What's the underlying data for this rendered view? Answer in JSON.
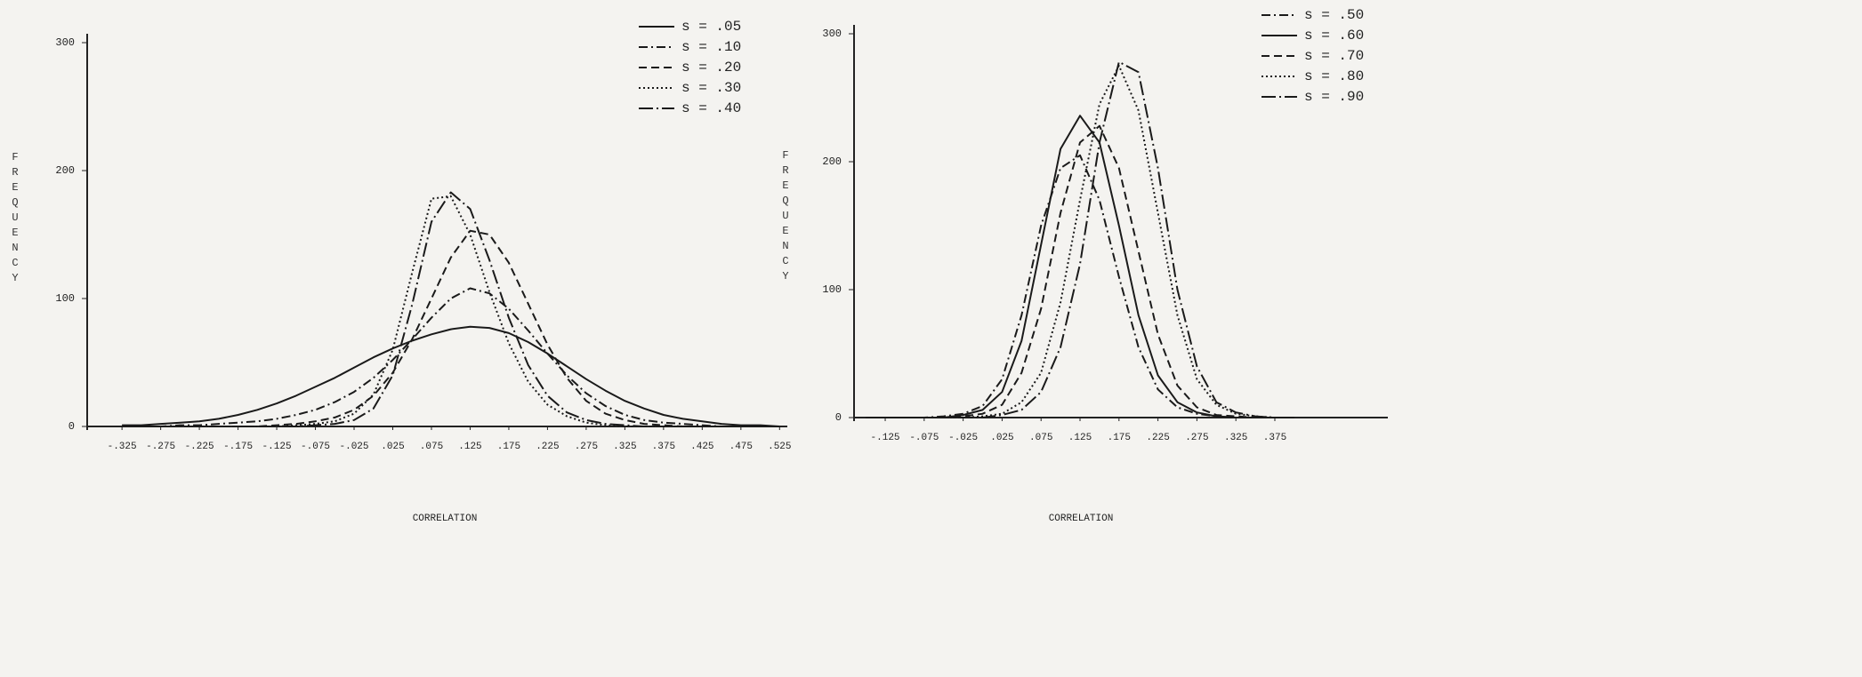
{
  "chart_data": [
    {
      "type": "line",
      "xlabel": "CORRELATION",
      "ylabel": "FREQUENCY",
      "grid": false,
      "legend": "top-right",
      "xlim": [
        -0.37,
        0.535
      ],
      "ylim": [
        0,
        300
      ],
      "xticks": [
        {
          "value": -0.325,
          "label": "-.325"
        },
        {
          "value": -0.275,
          "label": "-.275"
        },
        {
          "value": -0.225,
          "label": "-.225"
        },
        {
          "value": -0.175,
          "label": "-.175"
        },
        {
          "value": -0.125,
          "label": "-.125"
        },
        {
          "value": -0.075,
          "label": "-.075"
        },
        {
          "value": -0.025,
          "label": "-.025"
        },
        {
          "value": 0.025,
          "label": ".025"
        },
        {
          "value": 0.075,
          "label": ".075"
        },
        {
          "value": 0.125,
          "label": ".125"
        },
        {
          "value": 0.175,
          "label": ".175"
        },
        {
          "value": 0.225,
          "label": ".225"
        },
        {
          "value": 0.275,
          "label": ".275"
        },
        {
          "value": 0.325,
          "label": ".325"
        },
        {
          "value": 0.375,
          "label": ".375"
        },
        {
          "value": 0.425,
          "label": ".425"
        },
        {
          "value": 0.475,
          "label": ".475"
        },
        {
          "value": 0.525,
          "label": ".525"
        }
      ],
      "yticks": [
        0,
        100,
        200,
        300
      ],
      "x": [
        -0.325,
        -0.3,
        -0.275,
        -0.25,
        -0.225,
        -0.2,
        -0.175,
        -0.15,
        -0.125,
        -0.1,
        -0.075,
        -0.05,
        -0.025,
        0,
        0.025,
        0.05,
        0.075,
        0.1,
        0.125,
        0.15,
        0.175,
        0.2,
        0.225,
        0.25,
        0.275,
        0.3,
        0.325,
        0.35,
        0.375,
        0.4,
        0.425,
        0.45,
        0.475,
        0.5,
        0.525
      ],
      "series": [
        {
          "name": "s = .05",
          "color": "#1a1a1a",
          "line_style": "solid",
          "values": [
            1,
            1,
            2,
            3,
            4,
            6,
            9,
            13,
            18,
            24,
            31,
            38,
            46,
            54,
            61,
            67,
            72,
            76,
            78,
            77,
            73,
            66,
            57,
            47,
            37,
            28,
            20,
            14,
            9,
            6,
            4,
            2,
            1,
            1,
            0
          ]
        },
        {
          "name": "s = .10",
          "color": "#1a1a1a",
          "line_style": "dash-dot",
          "values": [
            0,
            0,
            0,
            1,
            1,
            2,
            3,
            4,
            6,
            9,
            13,
            19,
            27,
            38,
            52,
            68,
            85,
            100,
            108,
            104,
            92,
            75,
            57,
            40,
            26,
            16,
            9,
            5,
            3,
            2,
            1,
            0,
            0,
            0,
            0
          ]
        },
        {
          "name": "s = .20",
          "color": "#1a1a1a",
          "line_style": "dashed",
          "values": [
            0,
            0,
            0,
            0,
            0,
            0,
            0,
            0,
            1,
            2,
            4,
            7,
            13,
            24,
            42,
            68,
            100,
            132,
            153,
            150,
            128,
            96,
            64,
            38,
            20,
            10,
            5,
            2,
            1,
            0,
            0,
            0,
            0,
            0,
            0
          ]
        },
        {
          "name": "s = .30",
          "color": "#1a1a1a",
          "line_style": "dotted",
          "values": [
            0,
            0,
            0,
            0,
            0,
            0,
            0,
            0,
            0,
            1,
            2,
            4,
            10,
            25,
            60,
            120,
            178,
            180,
            150,
            105,
            65,
            35,
            17,
            8,
            3,
            1,
            0,
            0,
            0,
            0,
            0,
            0,
            0,
            0,
            0
          ]
        },
        {
          "name": "s = .40",
          "color": "#1a1a1a",
          "line_style": "long-dash-dot",
          "values": [
            0,
            0,
            0,
            0,
            0,
            0,
            0,
            0,
            0,
            0,
            1,
            2,
            5,
            14,
            40,
            95,
            160,
            183,
            170,
            130,
            85,
            48,
            24,
            11,
            5,
            2,
            1,
            0,
            0,
            0,
            0,
            0,
            0,
            0,
            0
          ]
        }
      ]
    },
    {
      "type": "line",
      "xlabel": "CORRELATION",
      "ylabel": "FREQUENCY",
      "grid": false,
      "legend": "top-right",
      "xlim": [
        -0.165,
        0.52
      ],
      "ylim": [
        0,
        300
      ],
      "xticks": [
        {
          "value": -0.125,
          "label": "-.125"
        },
        {
          "value": -0.075,
          "label": "-.075"
        },
        {
          "value": -0.025,
          "label": "-.025"
        },
        {
          "value": 0.025,
          "label": ".025"
        },
        {
          "value": 0.075,
          "label": ".075"
        },
        {
          "value": 0.125,
          "label": ".125"
        },
        {
          "value": 0.175,
          "label": ".175"
        },
        {
          "value": 0.225,
          "label": ".225"
        },
        {
          "value": 0.275,
          "label": ".275"
        },
        {
          "value": 0.325,
          "label": ".325"
        },
        {
          "value": 0.375,
          "label": ".375"
        }
      ],
      "yticks": [
        0,
        100,
        200,
        300
      ],
      "x": [
        -0.15,
        -0.125,
        -0.1,
        -0.075,
        -0.05,
        -0.025,
        0,
        0.025,
        0.05,
        0.075,
        0.1,
        0.125,
        0.15,
        0.175,
        0.2,
        0.225,
        0.25,
        0.275,
        0.3,
        0.325,
        0.35,
        0.375,
        0.4
      ],
      "series": [
        {
          "name": "s = .50",
          "color": "#1a1a1a",
          "line_style": "dash-dot",
          "values": [
            0,
            0,
            0,
            0,
            1,
            3,
            9,
            30,
            80,
            150,
            195,
            205,
            170,
            110,
            55,
            22,
            8,
            3,
            1,
            0,
            0,
            0,
            0
          ]
        },
        {
          "name": "s = .60",
          "color": "#1a1a1a",
          "line_style": "solid",
          "values": [
            0,
            0,
            0,
            0,
            0,
            2,
            6,
            20,
            60,
            135,
            210,
            236,
            215,
            150,
            80,
            33,
            12,
            4,
            1,
            0,
            0,
            0,
            0
          ]
        },
        {
          "name": "s = .70",
          "color": "#1a1a1a",
          "line_style": "dashed",
          "values": [
            0,
            0,
            0,
            0,
            0,
            1,
            3,
            10,
            35,
            85,
            160,
            215,
            228,
            195,
            130,
            65,
            25,
            8,
            2,
            1,
            0,
            0,
            0
          ]
        },
        {
          "name": "s = .80",
          "color": "#1a1a1a",
          "line_style": "dotted",
          "values": [
            0,
            0,
            0,
            0,
            0,
            0,
            1,
            3,
            12,
            35,
            90,
            170,
            245,
            275,
            240,
            160,
            80,
            30,
            10,
            3,
            1,
            0,
            0
          ]
        },
        {
          "name": "s = .90",
          "color": "#1a1a1a",
          "line_style": "long-dash-dot",
          "values": [
            0,
            0,
            0,
            0,
            0,
            0,
            0,
            2,
            6,
            20,
            55,
            120,
            215,
            278,
            270,
            195,
            100,
            40,
            12,
            4,
            1,
            0,
            0
          ]
        }
      ]
    }
  ]
}
